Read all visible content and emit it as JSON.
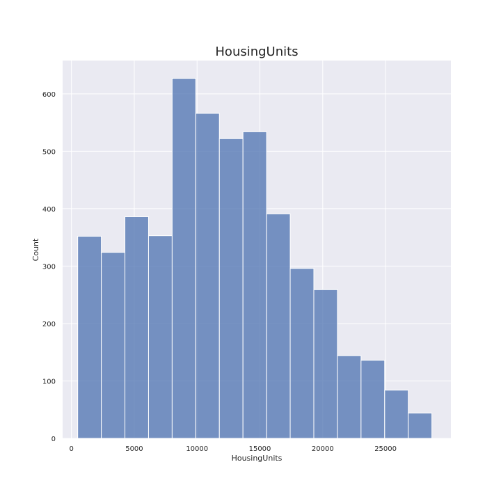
{
  "chart_data": {
    "type": "bar",
    "title": "HousingUnits",
    "xlabel": "HousingUnits",
    "ylabel": "Count",
    "bin_edges": [
      500,
      2379,
      4258,
      6137,
      8016,
      9895,
      11774,
      13653,
      15532,
      17411,
      19290,
      21169,
      23048,
      24927,
      26806,
      28685
    ],
    "values": [
      352,
      324,
      386,
      353,
      627,
      566,
      522,
      534,
      391,
      296,
      259,
      144,
      136,
      84,
      44
    ],
    "xlim": [
      -700,
      30200
    ],
    "ylim": [
      0,
      658
    ],
    "xticks": [
      0,
      5000,
      10000,
      15000,
      20000,
      25000
    ],
    "yticks": [
      0,
      100,
      200,
      300,
      400,
      500,
      600
    ],
    "grid": true,
    "colors": {
      "background": "#EAEAF2",
      "bar_fill": "#4C72B0",
      "bar_opacity": 0.75,
      "grid": "#FFFFFF",
      "text": "#262626"
    }
  }
}
